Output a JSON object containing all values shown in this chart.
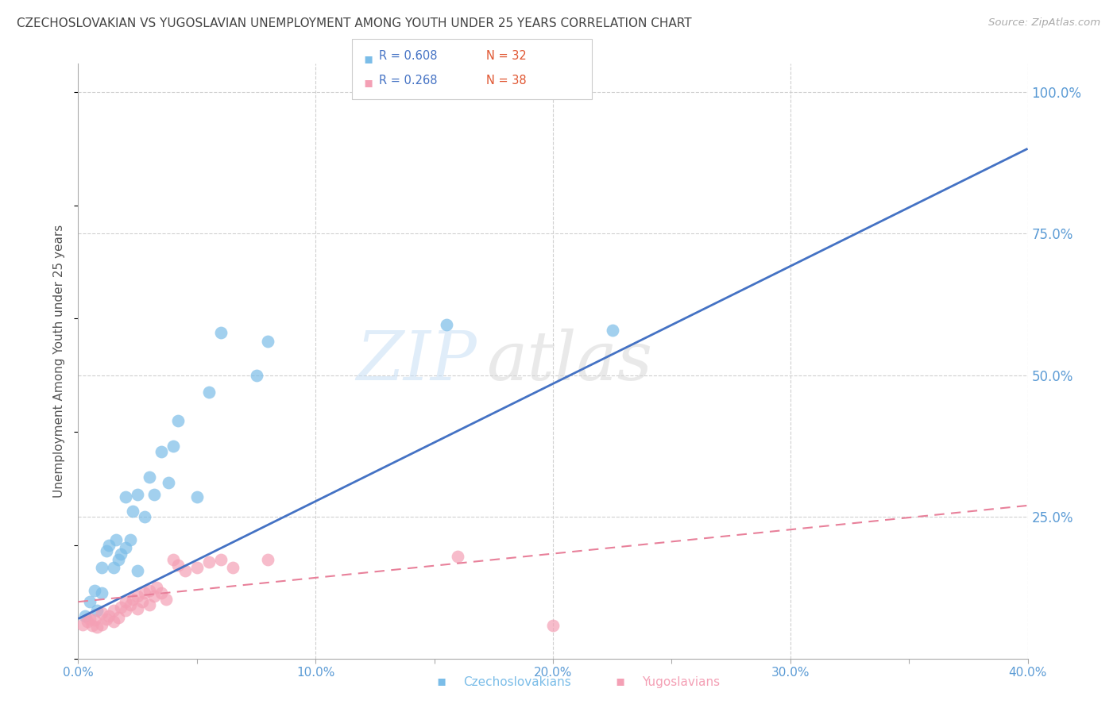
{
  "title": "CZECHOSLOVAKIAN VS YUGOSLAVIAN UNEMPLOYMENT AMONG YOUTH UNDER 25 YEARS CORRELATION CHART",
  "source": "Source: ZipAtlas.com",
  "ylabel": "Unemployment Among Youth under 25 years",
  "xlim": [
    0.0,
    0.4
  ],
  "ylim": [
    0.0,
    1.05
  ],
  "xtick_labels": [
    "0.0%",
    "",
    "10.0%",
    "",
    "20.0%",
    "",
    "30.0%",
    "",
    "40.0%"
  ],
  "xtick_vals": [
    0.0,
    0.05,
    0.1,
    0.15,
    0.2,
    0.25,
    0.3,
    0.35,
    0.4
  ],
  "ytick_labels": [
    "100.0%",
    "75.0%",
    "50.0%",
    "25.0%"
  ],
  "ytick_vals": [
    1.0,
    0.75,
    0.5,
    0.25
  ],
  "czech_color": "#7bbde8",
  "yugo_color": "#f4a0b5",
  "czech_line_color": "#4472c4",
  "yugo_line_color": "#e8809a",
  "legend_czech_label": "Czechoslovakians",
  "legend_yugo_label": "Yugoslavians",
  "czech_R": "R = 0.608",
  "czech_N": "N = 32",
  "yugo_R": "R = 0.268",
  "yugo_N": "N = 38",
  "watermark_zip": "ZIP",
  "watermark_atlas": "atlas",
  "background_color": "#ffffff",
  "grid_color": "#d0d0d0",
  "title_color": "#444444",
  "axis_label_color": "#555555",
  "tick_label_color": "#5b9bd5",
  "right_tick_color": "#5b9bd5",
  "czech_scatter_x": [
    0.003,
    0.005,
    0.007,
    0.008,
    0.01,
    0.01,
    0.012,
    0.013,
    0.015,
    0.016,
    0.017,
    0.018,
    0.02,
    0.02,
    0.022,
    0.023,
    0.025,
    0.025,
    0.028,
    0.03,
    0.032,
    0.035,
    0.038,
    0.04,
    0.042,
    0.05,
    0.055,
    0.06,
    0.075,
    0.08,
    0.155,
    0.225
  ],
  "czech_scatter_y": [
    0.075,
    0.1,
    0.12,
    0.085,
    0.115,
    0.16,
    0.19,
    0.2,
    0.16,
    0.21,
    0.175,
    0.185,
    0.195,
    0.285,
    0.21,
    0.26,
    0.155,
    0.29,
    0.25,
    0.32,
    0.29,
    0.365,
    0.31,
    0.375,
    0.42,
    0.285,
    0.47,
    0.575,
    0.5,
    0.56,
    0.59,
    0.58
  ],
  "yugo_scatter_x": [
    0.002,
    0.004,
    0.005,
    0.006,
    0.007,
    0.008,
    0.01,
    0.01,
    0.012,
    0.013,
    0.015,
    0.015,
    0.017,
    0.018,
    0.02,
    0.02,
    0.022,
    0.023,
    0.025,
    0.025,
    0.027,
    0.028,
    0.03,
    0.03,
    0.032,
    0.033,
    0.035,
    0.037,
    0.04,
    0.042,
    0.045,
    0.05,
    0.055,
    0.06,
    0.065,
    0.08,
    0.16,
    0.2
  ],
  "yugo_scatter_y": [
    0.06,
    0.065,
    0.07,
    0.058,
    0.068,
    0.055,
    0.06,
    0.08,
    0.07,
    0.075,
    0.065,
    0.085,
    0.072,
    0.09,
    0.085,
    0.1,
    0.095,
    0.105,
    0.088,
    0.11,
    0.1,
    0.115,
    0.095,
    0.12,
    0.11,
    0.125,
    0.115,
    0.105,
    0.175,
    0.165,
    0.155,
    0.16,
    0.17,
    0.175,
    0.16,
    0.175,
    0.18,
    0.058
  ],
  "czech_line_x0": 0.0,
  "czech_line_y0": 0.07,
  "czech_line_x1": 0.4,
  "czech_line_y1": 0.9,
  "yugo_line_x0": 0.0,
  "yugo_line_y0": 0.1,
  "yugo_line_x1": 0.4,
  "yugo_line_y1": 0.27
}
